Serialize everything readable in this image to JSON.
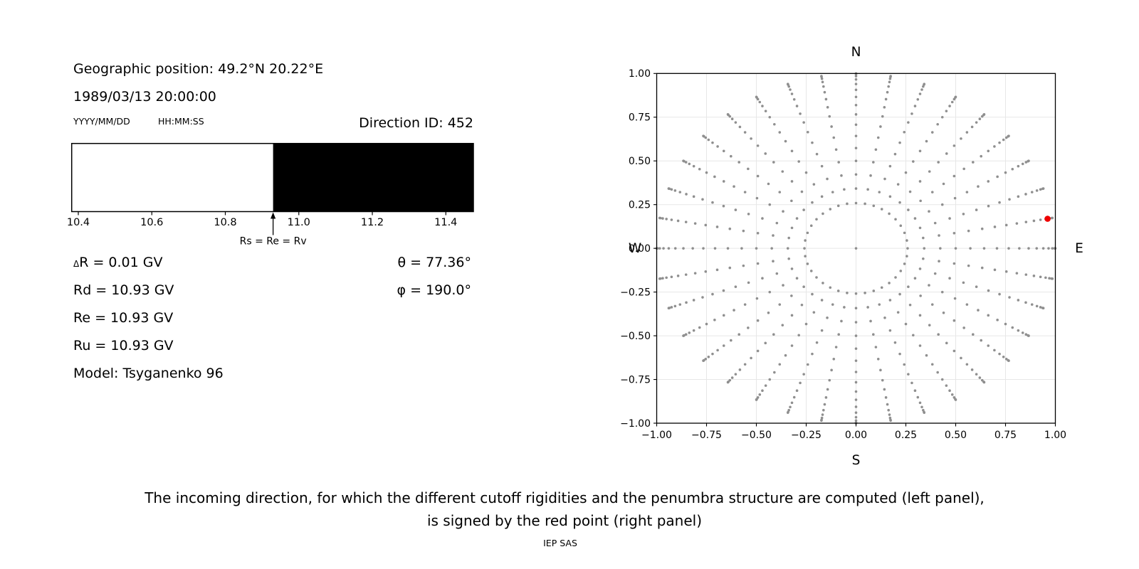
{
  "header": {
    "position": "Geographic position: 49.2°N 20.22°E",
    "datetime": "1989/03/13 20:00:00",
    "date_format": "YYYY/MM/DD",
    "time_format": "HH:MM:SS",
    "direction_id": "Direction ID: 452"
  },
  "params": {
    "delta_symbol": "Δ",
    "delta_r_rest": "R = 0.01 GV",
    "rd": "Rd = 10.93 GV",
    "re": "Re = 10.93 GV",
    "ru": "Ru = 10.93 GV",
    "model": "Model: Tsyganenko 96",
    "theta_symbol": "θ",
    "theta_rest": " = 77.36°",
    "phi_symbol": "φ",
    "phi_rest": " = 190.0°"
  },
  "caption": {
    "line1": "The incoming direction, for which the different cutoff rigidities and the penumbra structure are computed (left panel),",
    "line2": "is signed by the red point (right panel)",
    "credit": "IEP SAS"
  },
  "chart_data": [
    {
      "id": "penumbra-structure",
      "type": "bar",
      "xlabel": "",
      "ylabel": "",
      "xlim": [
        10.382,
        11.475
      ],
      "xticks": [
        10.4,
        10.6,
        10.8,
        11.0,
        11.2,
        11.4
      ],
      "xtick_labels": [
        "10.4",
        "10.6",
        "10.8",
        "11.0",
        "11.2",
        "11.4"
      ],
      "units": "GV",
      "segments": [
        {
          "from": 10.382,
          "to": 10.93,
          "color": "#ffffff",
          "meaning": "allowed rigidity band"
        },
        {
          "from": 10.93,
          "to": 11.475,
          "color": "#000000",
          "meaning": "forbidden rigidity band"
        }
      ],
      "annotation": {
        "text": "Rs = Re = Rv",
        "x": 10.93
      }
    },
    {
      "id": "incoming-direction-map",
      "type": "scatter",
      "xlim": [
        -1,
        1
      ],
      "ylim": [
        -1,
        1
      ],
      "grid": true,
      "xticks": [
        -1.0,
        -0.75,
        -0.5,
        -0.25,
        0.0,
        0.25,
        0.5,
        0.75,
        1.0
      ],
      "yticks": [
        -1.0,
        -0.75,
        -0.5,
        -0.25,
        0.0,
        0.25,
        0.5,
        0.75,
        1.0
      ],
      "xtick_labels": [
        "−1.00",
        "−0.75",
        "−0.50",
        "−0.25",
        "0.00",
        "0.25",
        "0.50",
        "0.75",
        "1.00"
      ],
      "ytick_labels": [
        "1.00",
        "0.75",
        "0.50",
        "0.25",
        "0.00",
        "−0.25",
        "−0.50",
        "−0.75",
        "−1.00"
      ],
      "compass": {
        "top": "N",
        "bottom": "S",
        "left": "W",
        "right": "E"
      },
      "gray_points": {
        "description": "Grid of incoming directions: one dot at the centre plus radial rays; radius r = sin(zenith).",
        "azimuth_start_deg": 0,
        "azimuth_step_deg": 10,
        "azimuth_count": 36,
        "zenith_start_deg": 15,
        "zenith_step_deg": 5,
        "zenith_count": 16,
        "includes_center_point": true,
        "color": "#8f8f8f"
      },
      "red_point": {
        "x": 0.961,
        "y": 0.169,
        "color": "#ee0000",
        "meaning": "selected incoming direction (θ = 77.36°, φ = 190.0°)"
      }
    }
  ]
}
